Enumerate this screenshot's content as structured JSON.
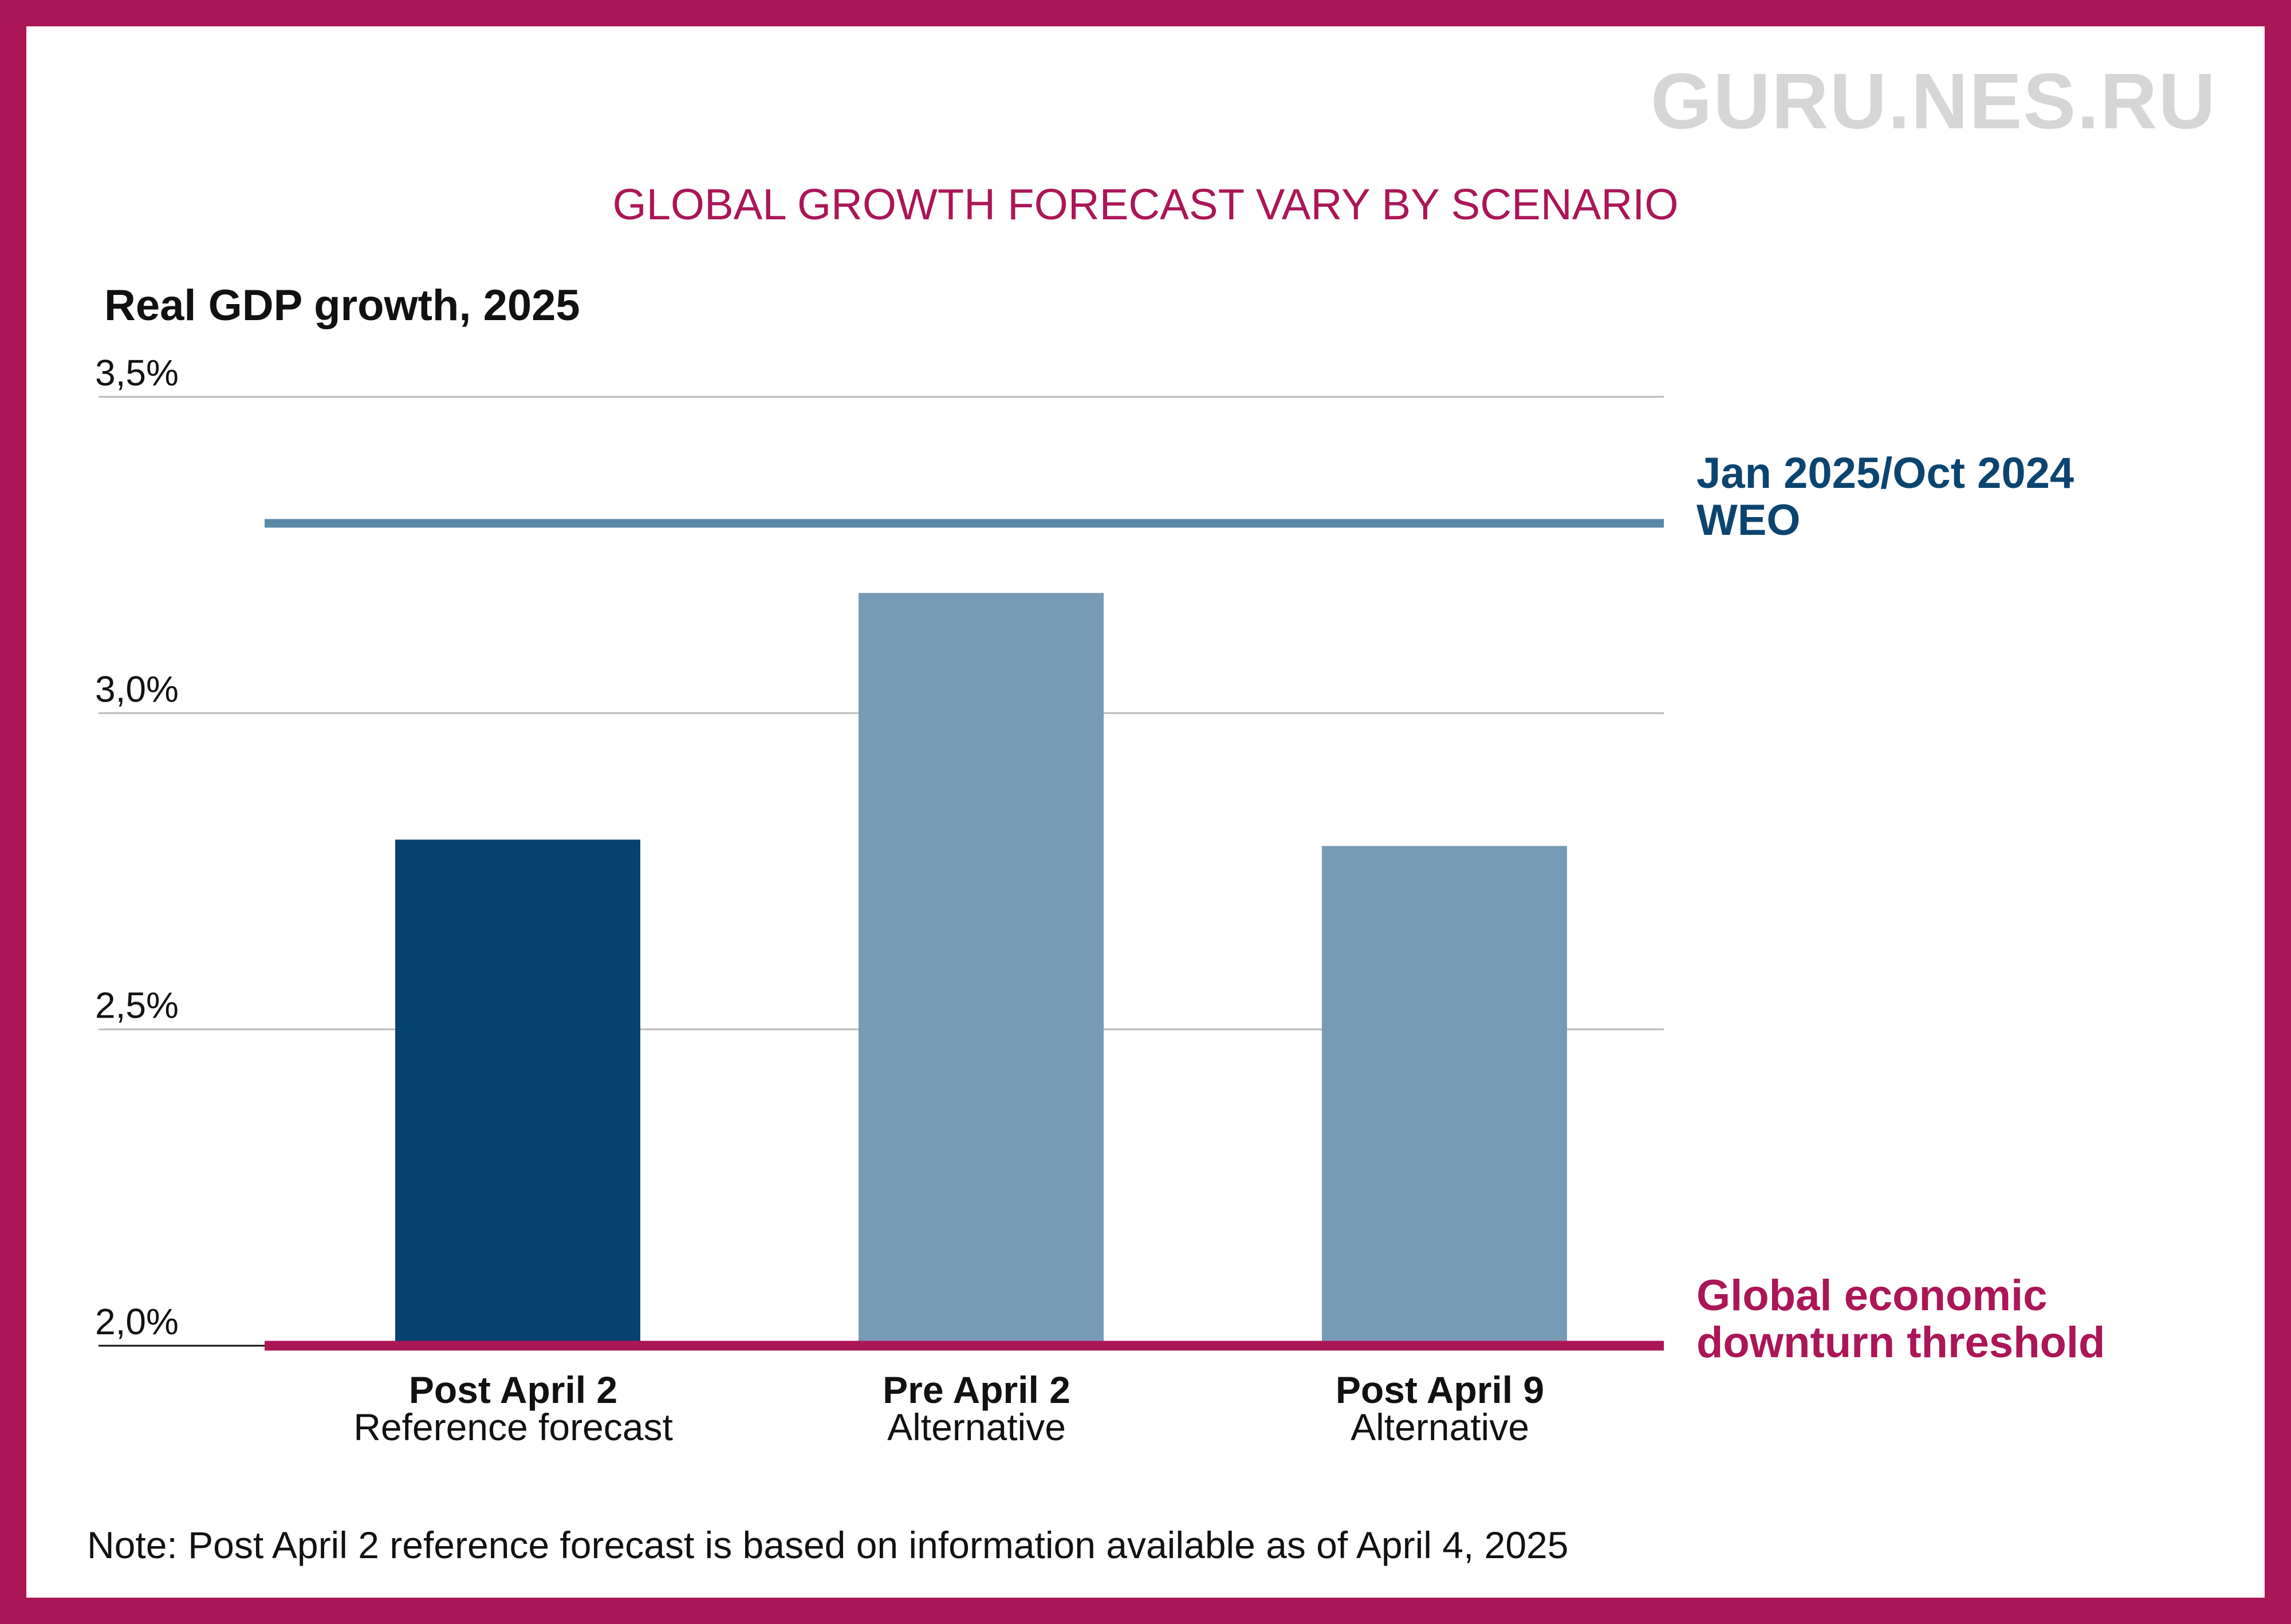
{
  "watermark": "GURU.NES.RU",
  "note": "Note: Post April 2 reference forecast is based on information available as of April 4, 2025",
  "colors": {
    "frame": "#ab1657",
    "accent": "#ab1657",
    "bar_dark": "#06426f",
    "bar_light": "#789bb5",
    "weo_line": "#5a87a6",
    "weo_text": "#0c4470",
    "gridline": "#bbbbbb"
  },
  "chart_data": {
    "type": "bar",
    "title": "GLOBAL GROWTH FORECAST VARY BY SCENARIO",
    "ylabel": "Real GDP growth, 2025",
    "xlabel": "",
    "ylim": [
      2.0,
      3.5
    ],
    "yticks": [
      {
        "value": 2.0,
        "label": "2,0%"
      },
      {
        "value": 2.5,
        "label": "2,5%"
      },
      {
        "value": 3.0,
        "label": "3,0%"
      },
      {
        "value": 3.5,
        "label": "3,5%"
      }
    ],
    "grid": true,
    "categories": [
      {
        "name": "Post April 2",
        "sub": "Reference forecast"
      },
      {
        "name": "Pre April 2",
        "sub": "Alternative"
      },
      {
        "name": "Post April 9",
        "sub": "Alternative"
      }
    ],
    "values": [
      2.8,
      3.19,
      2.79
    ],
    "bar_colors": [
      "#06426f",
      "#789bb5",
      "#789bb5"
    ],
    "reference_lines": [
      {
        "name": "weo",
        "value": 3.3,
        "label_lines": [
          "Jan 2025/Oct 2024",
          "WEO"
        ],
        "color": "#5a87a6",
        "text_color": "#0c4470"
      },
      {
        "name": "threshold",
        "value": 2.0,
        "label_lines": [
          "Global economic",
          "downturn threshold"
        ],
        "color": "#ab1657",
        "text_color": "#ab1657"
      }
    ]
  }
}
